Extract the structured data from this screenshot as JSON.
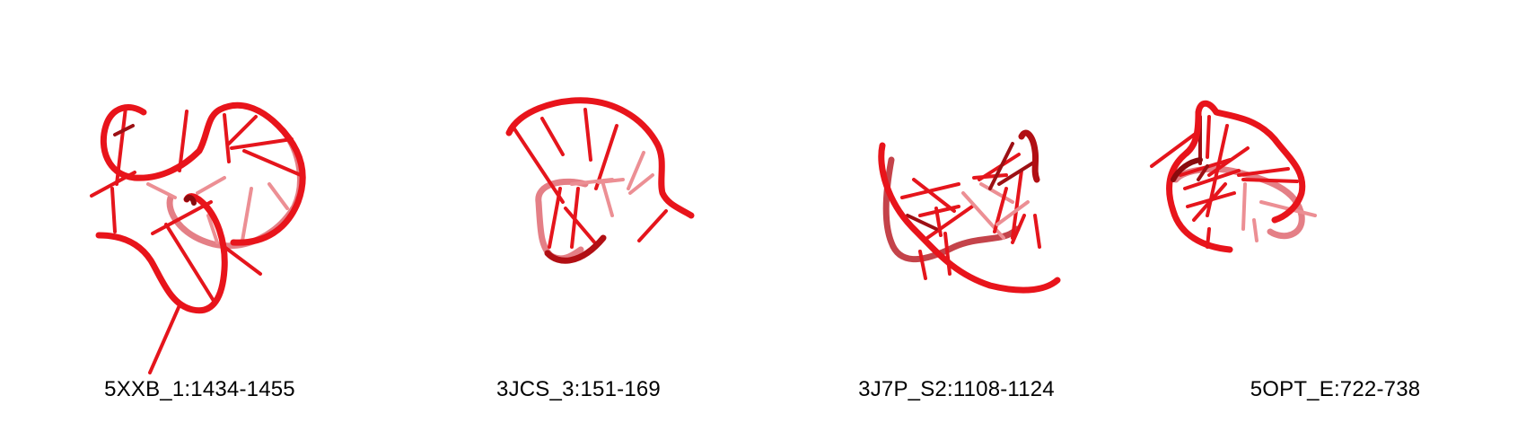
{
  "colors": {
    "backbone": "#e8141b",
    "backbone_shadow": "#8a0b0e",
    "backbone_faded": "#e47f86",
    "rung": "#e5151c",
    "rung_dark": "#9c1014",
    "rung_faded": "#ec8f94"
  },
  "structures": [
    {
      "label": "5XXB_1:1434-1455"
    },
    {
      "label": "3JCS_3:151-169"
    },
    {
      "label": "3J7P_S2:1108-1124"
    },
    {
      "label": "5OPT_E:722-738"
    }
  ]
}
